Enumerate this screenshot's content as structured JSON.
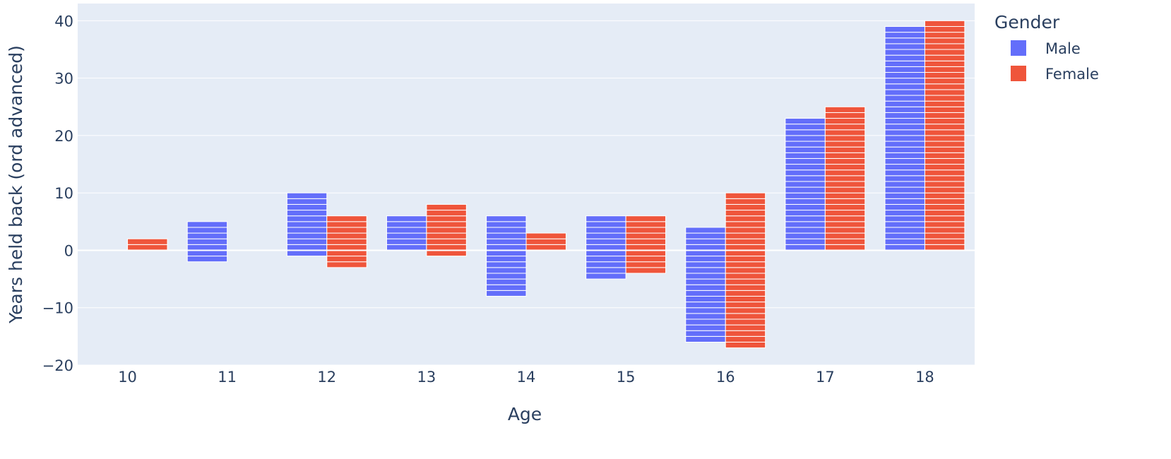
{
  "chart_data": {
    "type": "bar",
    "barmode": "group",
    "title": "",
    "xlabel": "Age",
    "ylabel": "Years held back (ord advanced)",
    "categories": [
      "10",
      "11",
      "12",
      "13",
      "14",
      "15",
      "16",
      "17",
      "18"
    ],
    "ylim": [
      -20,
      43
    ],
    "yticks": [
      40,
      30,
      20,
      10,
      0,
      -10,
      -20
    ],
    "ytick_labels": [
      "40",
      "30",
      "20",
      "10",
      "0",
      "−10",
      "−20"
    ],
    "grid": true,
    "legend": {
      "title": "Gender",
      "placement": "right"
    },
    "series": [
      {
        "name": "Male",
        "color": "#636efa",
        "positive": [
          0,
          5,
          10,
          6,
          6,
          6,
          4,
          23,
          39
        ],
        "negative": [
          0,
          -2,
          -1,
          0,
          -8,
          -5,
          -16,
          0,
          0
        ]
      },
      {
        "name": "Female",
        "color": "#ef553b",
        "positive": [
          2,
          0,
          6,
          8,
          3,
          6,
          10,
          25,
          40
        ],
        "negative": [
          0,
          0,
          -3,
          -1,
          0,
          -4,
          -17,
          0,
          0
        ]
      }
    ],
    "plot_background": "#e5ecf6",
    "segment_line_color": "#ffffff"
  }
}
